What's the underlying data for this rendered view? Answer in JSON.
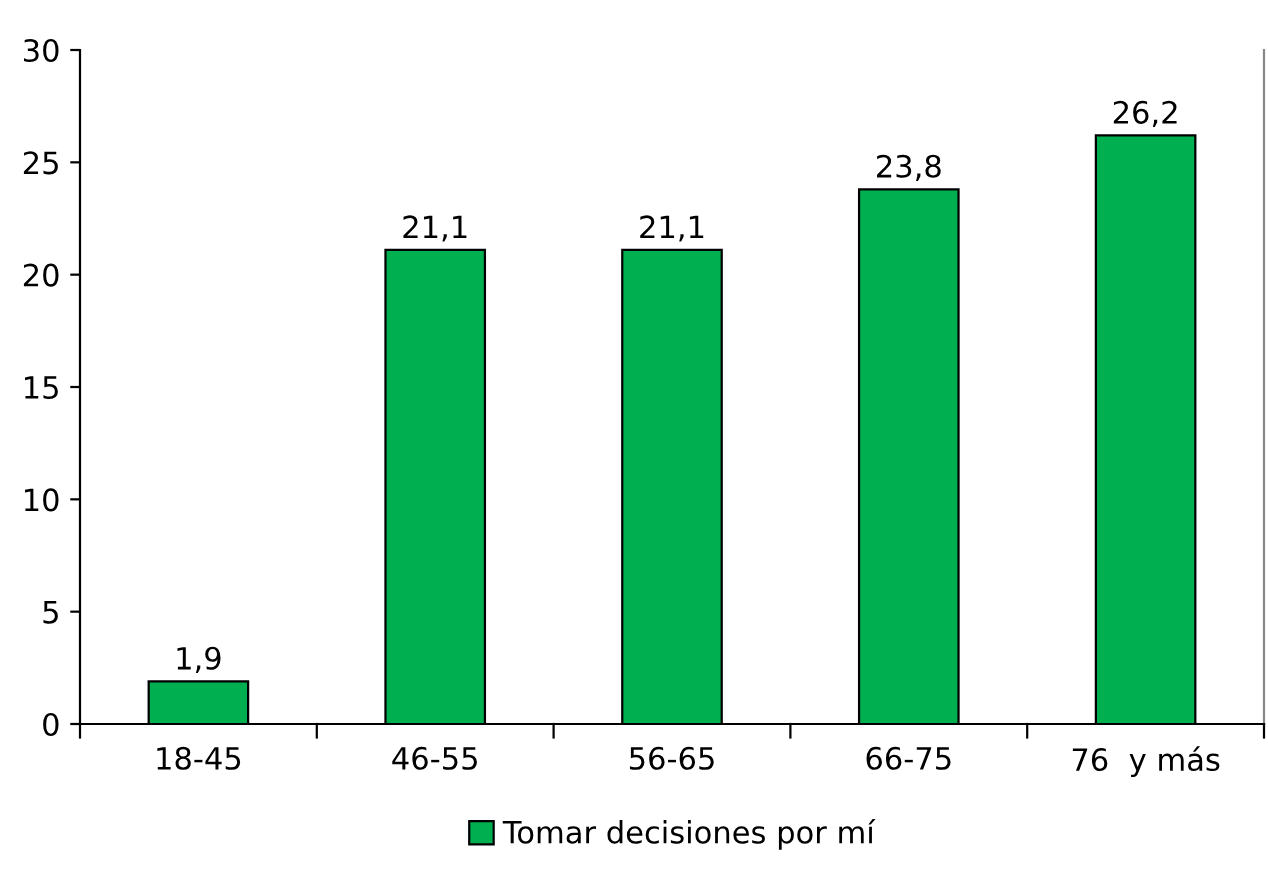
{
  "chart_data": {
    "type": "bar",
    "categories": [
      "18-45",
      "46-55",
      "56-65",
      "66-75",
      "76  y más"
    ],
    "series": [
      {
        "name": "Tomar decisiones por mí",
        "color": "#00b050",
        "values": [
          1.9,
          21.1,
          21.1,
          23.8,
          26.2
        ],
        "value_labels": [
          "1,9",
          "21,1",
          "21,1",
          "23,8",
          "26,2"
        ]
      }
    ],
    "ylim": [
      0,
      30
    ],
    "yticks": [
      0,
      5,
      10,
      15,
      20,
      25,
      30
    ],
    "grid": false,
    "legend": "bottom"
  }
}
